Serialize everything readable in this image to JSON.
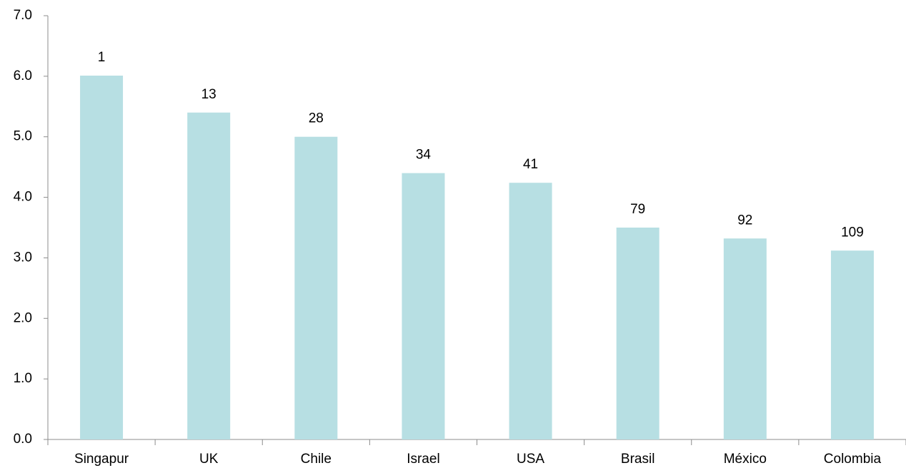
{
  "chart_data": {
    "type": "bar",
    "categories": [
      "Singapur",
      "UK",
      "Chile",
      "Israel",
      "USA",
      "Brasil",
      "México",
      "Colombia"
    ],
    "values": [
      6.01,
      5.4,
      5.0,
      4.4,
      4.24,
      3.5,
      3.32,
      3.12
    ],
    "rank_labels": [
      1,
      13,
      28,
      34,
      41,
      79,
      92,
      109
    ],
    "color": "#b7dfe3",
    "ylim": [
      0,
      7
    ],
    "yticks": [
      {
        "value": 0,
        "label": "0.0"
      },
      {
        "value": 1,
        "label": "1.0"
      },
      {
        "value": 2,
        "label": "2.0"
      },
      {
        "value": 3,
        "label": "3.0"
      },
      {
        "value": 4,
        "label": "4.0"
      },
      {
        "value": 5,
        "label": "5.0"
      },
      {
        "value": 6,
        "label": "6.0"
      },
      {
        "value": 7,
        "label": "7.0"
      }
    ],
    "grid": false
  }
}
